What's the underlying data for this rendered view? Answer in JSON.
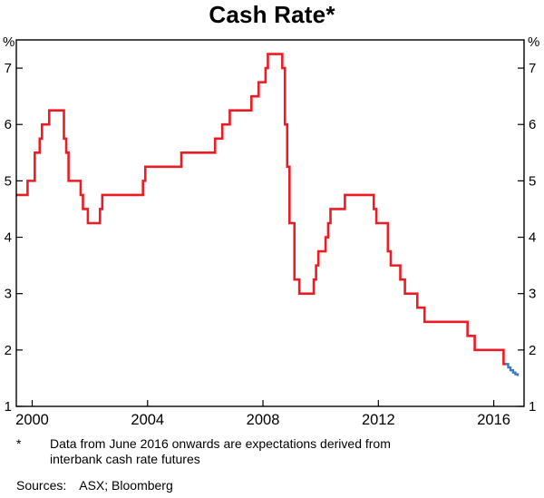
{
  "footnote": {
    "marker": "*",
    "lines": [
      "Data from June 2016 onwards are expectations derived from",
      "interbank cash rate futures"
    ]
  },
  "sources": {
    "label": "Sources:",
    "value": "ASX; Bloomberg"
  },
  "chart_data": {
    "type": "line",
    "style": "step",
    "title": "Cash Rate*",
    "y_unit": "%",
    "x_range": [
      1999.45,
      2017.05
    ],
    "y_range": [
      1,
      7.5
    ],
    "y_ticks": [
      1,
      2,
      3,
      4,
      5,
      6,
      7
    ],
    "x_ticks": [
      2000,
      2004,
      2008,
      2012,
      2016
    ],
    "grid": false,
    "frame": true,
    "legend": "none",
    "axis_color": "#000000",
    "series": [
      {
        "id": "actual",
        "name": "Cash rate (actual)",
        "color": "#ed1c24",
        "width": 2.6,
        "points": [
          [
            1999.45,
            4.75
          ],
          [
            1999.84,
            5.0
          ],
          [
            2000.09,
            5.5
          ],
          [
            2000.26,
            5.75
          ],
          [
            2000.34,
            6.0
          ],
          [
            2000.59,
            6.25
          ],
          [
            2001.1,
            5.75
          ],
          [
            2001.18,
            5.5
          ],
          [
            2001.26,
            5.0
          ],
          [
            2001.68,
            4.75
          ],
          [
            2001.76,
            4.5
          ],
          [
            2001.93,
            4.25
          ],
          [
            2002.35,
            4.5
          ],
          [
            2002.43,
            4.75
          ],
          [
            2003.84,
            5.0
          ],
          [
            2003.92,
            5.25
          ],
          [
            2005.17,
            5.5
          ],
          [
            2006.34,
            5.75
          ],
          [
            2006.59,
            6.0
          ],
          [
            2006.85,
            6.25
          ],
          [
            2007.6,
            6.5
          ],
          [
            2007.85,
            6.75
          ],
          [
            2008.09,
            7.0
          ],
          [
            2008.17,
            7.25
          ],
          [
            2008.67,
            7.0
          ],
          [
            2008.76,
            6.0
          ],
          [
            2008.84,
            5.25
          ],
          [
            2008.92,
            4.25
          ],
          [
            2009.09,
            3.25
          ],
          [
            2009.26,
            3.0
          ],
          [
            2009.76,
            3.25
          ],
          [
            2009.84,
            3.5
          ],
          [
            2009.92,
            3.75
          ],
          [
            2010.17,
            4.0
          ],
          [
            2010.26,
            4.25
          ],
          [
            2010.34,
            4.5
          ],
          [
            2010.84,
            4.75
          ],
          [
            2011.84,
            4.5
          ],
          [
            2011.93,
            4.25
          ],
          [
            2012.33,
            3.75
          ],
          [
            2012.43,
            3.5
          ],
          [
            2012.76,
            3.25
          ],
          [
            2012.92,
            3.0
          ],
          [
            2013.35,
            2.75
          ],
          [
            2013.6,
            2.5
          ],
          [
            2015.09,
            2.25
          ],
          [
            2015.34,
            2.0
          ],
          [
            2016.34,
            1.75
          ],
          [
            2016.42,
            1.75
          ]
        ]
      },
      {
        "id": "expectations",
        "name": "Expectations derived from interbank cash rate futures",
        "color": "#3d7bbf",
        "width": 2.4,
        "points": [
          [
            2016.42,
            1.75
          ],
          [
            2016.5,
            1.69
          ],
          [
            2016.58,
            1.64
          ],
          [
            2016.67,
            1.6
          ],
          [
            2016.75,
            1.57
          ],
          [
            2016.83,
            1.54
          ]
        ]
      }
    ]
  }
}
